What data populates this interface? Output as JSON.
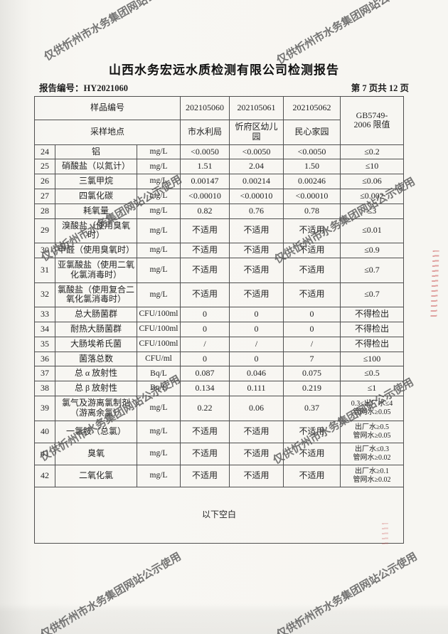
{
  "watermark": {
    "text": "仅供忻州市水务集团网站公示使用"
  },
  "header": {
    "title": "山西水务宏远水质检测有限公司检测报告",
    "report_no": "报告编号：HY2021060",
    "page_info": "第 7 页共 12 页"
  },
  "table": {
    "header_row1_label": "样品编号",
    "header_row2_label": "采样地点",
    "sample_ids": [
      "202105060",
      "202105061",
      "202105062"
    ],
    "locations": [
      "市水利局",
      "忻府区幼儿园",
      "民心家园"
    ],
    "limit_header": "GB5749-\n2006 限值",
    "rows": [
      {
        "no": "24",
        "name": "铝",
        "unit": "mg/L",
        "v1": "<0.0050",
        "v2": "<0.0050",
        "v3": "<0.0050",
        "limit": "≤0.2"
      },
      {
        "no": "25",
        "name": "硝酸盐（以氮计）",
        "unit": "mg/L",
        "v1": "1.51",
        "v2": "2.04",
        "v3": "1.50",
        "limit": "≤10"
      },
      {
        "no": "26",
        "name": "三氯甲烷",
        "unit": "mg/L",
        "v1": "0.00147",
        "v2": "0.00214",
        "v3": "0.00246",
        "limit": "≤0.06"
      },
      {
        "no": "27",
        "name": "四氯化碳",
        "unit": "mg/L",
        "v1": "<0.00010",
        "v2": "<0.00010",
        "v3": "<0.00010",
        "limit": "≤0.002"
      },
      {
        "no": "28",
        "name": "耗氧量",
        "unit": "mg/L",
        "v1": "0.82",
        "v2": "0.76",
        "v3": "0.78",
        "limit": "≤3"
      },
      {
        "no": "29",
        "name": "溴酸盐（使用臭氧时）",
        "unit": "mg/L",
        "v1": "不适用",
        "v2": "不适用",
        "v3": "不适用",
        "limit": "≤0.01"
      },
      {
        "no": "30",
        "name": "甲醛（使用臭氧时）",
        "unit": "mg/L",
        "v1": "不适用",
        "v2": "不适用",
        "v3": "不适用",
        "limit": "≤0.9"
      },
      {
        "no": "31",
        "name": "亚氯酸盐（使用二氧\n化氯消毒时）",
        "unit": "mg/L",
        "v1": "不适用",
        "v2": "不适用",
        "v3": "不适用",
        "limit": "≤0.7"
      },
      {
        "no": "32",
        "name": "氯酸盐（使用复合二\n氧化氯消毒时）",
        "unit": "mg/L",
        "v1": "不适用",
        "v2": "不适用",
        "v3": "不适用",
        "limit": "≤0.7"
      },
      {
        "no": "33",
        "name": "总大肠菌群",
        "unit": "CFU/100ml",
        "v1": "0",
        "v2": "0",
        "v3": "0",
        "limit": "不得检出"
      },
      {
        "no": "34",
        "name": "耐热大肠菌群",
        "unit": "CFU/100ml",
        "v1": "0",
        "v2": "0",
        "v3": "0",
        "limit": "不得检出"
      },
      {
        "no": "35",
        "name": "大肠埃希氏菌",
        "unit": "CFU/100ml",
        "v1": "/",
        "v2": "/",
        "v3": "/",
        "limit": "不得检出"
      },
      {
        "no": "36",
        "name": "菌落总数",
        "unit": "CFU/ml",
        "v1": "0",
        "v2": "0",
        "v3": "7",
        "limit": "≤100"
      },
      {
        "no": "37",
        "name": "总 α 放射性",
        "unit": "Bq/L",
        "v1": "0.087",
        "v2": "0.046",
        "v3": "0.075",
        "limit": "≤0.5"
      },
      {
        "no": "38",
        "name": "总 β 放射性",
        "unit": "Bq/L",
        "v1": "0.134",
        "v2": "0.111",
        "v3": "0.219",
        "limit": "≤1"
      },
      {
        "no": "39",
        "name": "氯气及游离氯制剂\n（游离余氯）",
        "unit": "mg/L",
        "v1": "0.22",
        "v2": "0.06",
        "v3": "0.37",
        "limit": "0.3≤出厂水≤4\n管网水≥0.05"
      },
      {
        "no": "40",
        "name": "一氯胺（总氯）",
        "unit": "mg/L",
        "v1": "不适用",
        "v2": "不适用",
        "v3": "不适用",
        "limit": "出厂水≥0.5\n管网水≥0.05"
      },
      {
        "no": "41",
        "name": "臭氧",
        "unit": "mg/L",
        "v1": "不适用",
        "v2": "不适用",
        "v3": "不适用",
        "limit": "出厂水≤0.3\n管网水≥0.02"
      },
      {
        "no": "42",
        "name": "二氧化氯",
        "unit": "mg/L",
        "v1": "不适用",
        "v2": "不适用",
        "v3": "不适用",
        "limit": "出厂水≥0.1\n管网水≥0.02"
      }
    ],
    "footer_note": "以下空白"
  }
}
